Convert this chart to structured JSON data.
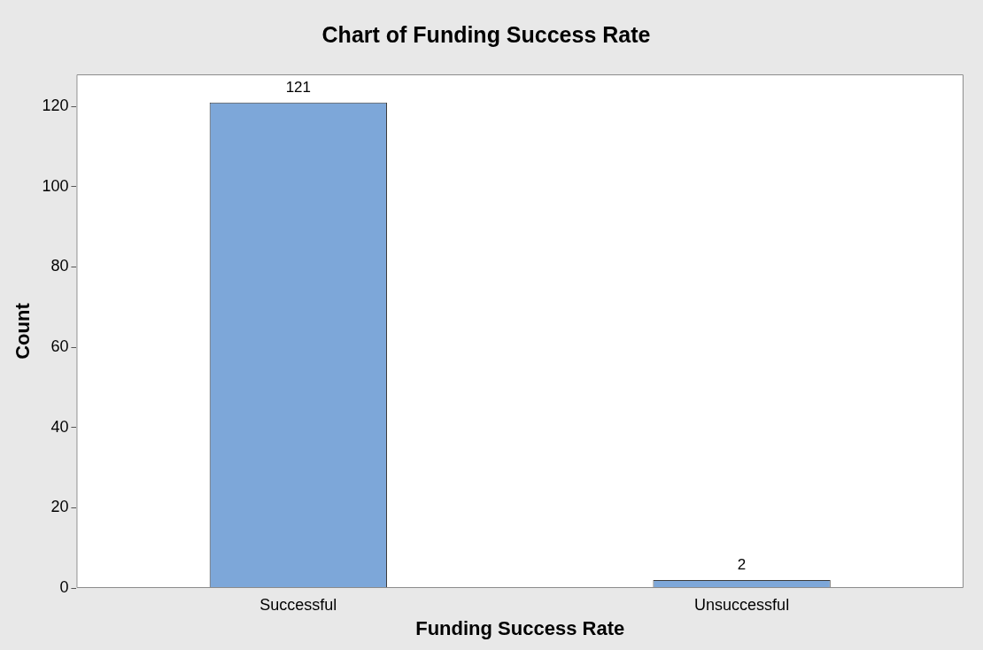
{
  "chart_data": {
    "type": "bar",
    "title": "Chart of Funding Success Rate",
    "xlabel": "Funding Success Rate",
    "ylabel": "Count",
    "categories": [
      "Successful",
      "Unsuccessful"
    ],
    "values": [
      121,
      2
    ],
    "color": "#7da7d9",
    "ylim": [
      0,
      128
    ],
    "yticks": [
      0,
      20,
      40,
      60,
      80,
      100,
      120
    ],
    "grid": false,
    "legend": false,
    "data_labels": true
  }
}
